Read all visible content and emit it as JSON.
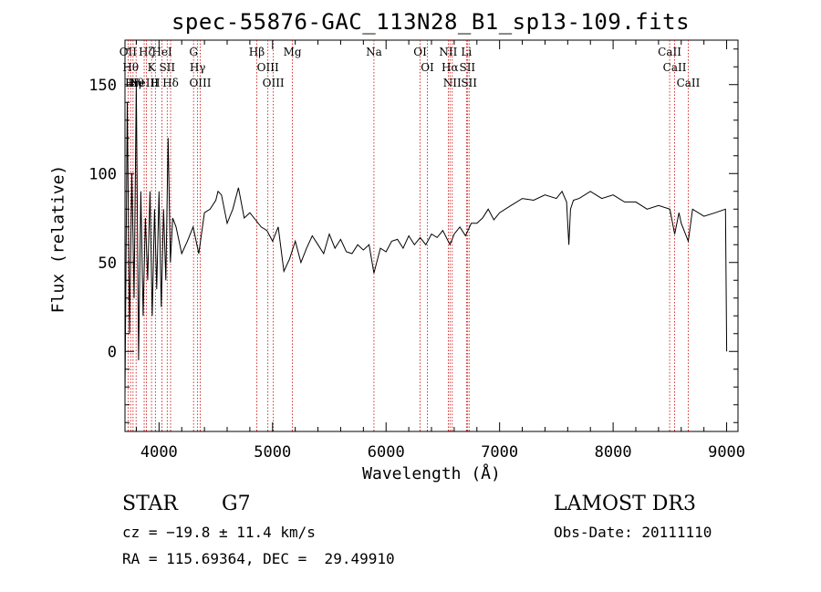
{
  "chart_data": {
    "type": "line",
    "title": "spec-55876-GAC_113N28_B1_sp13-109.fits",
    "xlabel": "Wavelength (Å)",
    "ylabel": "Flux (relative)",
    "xlim": [
      3700,
      9100
    ],
    "ylim": [
      -45,
      175
    ],
    "xticks": [
      4000,
      5000,
      6000,
      7000,
      8000,
      9000
    ],
    "yticks": [
      0,
      50,
      100,
      150
    ],
    "series": [
      {
        "name": "spectrum",
        "x": [
          3700,
          3720,
          3740,
          3760,
          3780,
          3800,
          3820,
          3840,
          3860,
          3880,
          3900,
          3920,
          3940,
          3960,
          3980,
          4000,
          4020,
          4040,
          4060,
          4080,
          4100,
          4120,
          4150,
          4200,
          4250,
          4300,
          4350,
          4400,
          4450,
          4500,
          4520,
          4550,
          4600,
          4650,
          4700,
          4750,
          4800,
          4850,
          4900,
          4950,
          5000,
          5050,
          5100,
          5150,
          5200,
          5250,
          5300,
          5350,
          5400,
          5450,
          5500,
          5550,
          5600,
          5650,
          5700,
          5750,
          5800,
          5850,
          5893,
          5950,
          6000,
          6050,
          6100,
          6150,
          6200,
          6250,
          6300,
          6350,
          6400,
          6450,
          6500,
          6563,
          6600,
          6650,
          6700,
          6750,
          6800,
          6850,
          6900,
          6950,
          7000,
          7100,
          7200,
          7300,
          7400,
          7500,
          7550,
          7590,
          7610,
          7625,
          7650,
          7700,
          7800,
          7900,
          8000,
          8100,
          8200,
          8300,
          8400,
          8500,
          8542,
          8580,
          8600,
          8662,
          8700,
          8800,
          8900,
          8990,
          9000
        ],
        "y": [
          -25,
          140,
          10,
          100,
          30,
          150,
          -5,
          90,
          20,
          75,
          40,
          90,
          20,
          80,
          35,
          90,
          25,
          80,
          40,
          120,
          50,
          75,
          70,
          55,
          62,
          70,
          55,
          78,
          80,
          85,
          90,
          88,
          72,
          80,
          92,
          75,
          78,
          74,
          70,
          68,
          62,
          70,
          45,
          52,
          62,
          50,
          58,
          65,
          60,
          55,
          66,
          58,
          63,
          56,
          55,
          60,
          57,
          60,
          44,
          58,
          56,
          62,
          63,
          58,
          65,
          60,
          64,
          60,
          66,
          64,
          68,
          60,
          66,
          70,
          65,
          72,
          72,
          75,
          80,
          74,
          78,
          82,
          86,
          85,
          88,
          86,
          90,
          84,
          60,
          80,
          85,
          86,
          90,
          86,
          88,
          84,
          84,
          80,
          82,
          80,
          66,
          78,
          72,
          62,
          80,
          76,
          78,
          80,
          0
        ]
      }
    ],
    "lines": [
      {
        "x": 3727,
        "label": "OII"
      },
      {
        "x": 3750,
        "label": "Hθ"
      },
      {
        "x": 3771,
        "label": "Hη"
      },
      {
        "x": 3798,
        "label": "Hθ"
      },
      {
        "x": 3869,
        "label": "NeIII"
      },
      {
        "x": 3889,
        "label": "Hζ"
      },
      {
        "x": 3934,
        "label": "K"
      },
      {
        "x": 3968,
        "label": "H"
      },
      {
        "x": 4026,
        "label": "HeI"
      },
      {
        "x": 4072,
        "label": "SII"
      },
      {
        "x": 4102,
        "label": "Hδ"
      },
      {
        "x": 4304,
        "label": "G"
      },
      {
        "x": 4340,
        "label": "Hγ"
      },
      {
        "x": 4363,
        "label": "OIII"
      },
      {
        "x": 4861,
        "label": "Hβ"
      },
      {
        "x": 4959,
        "label": "OIII"
      },
      {
        "x": 5007,
        "label": "OIII"
      },
      {
        "x": 5175,
        "label": "Mg"
      },
      {
        "x": 5893,
        "label": "Na"
      },
      {
        "x": 6300,
        "label": "OI"
      },
      {
        "x": 6364,
        "label": "OI"
      },
      {
        "x": 6548,
        "label": "NII"
      },
      {
        "x": 6563,
        "label": "Hα"
      },
      {
        "x": 6583,
        "label": "NII"
      },
      {
        "x": 6708,
        "label": "Li"
      },
      {
        "x": 6716,
        "label": "SII"
      },
      {
        "x": 6731,
        "label": "SII"
      },
      {
        "x": 8498,
        "label": "CaII"
      },
      {
        "x": 8542,
        "label": "CaII"
      },
      {
        "x": 8662,
        "label": "CaII"
      }
    ],
    "legend": "none",
    "grid": false
  },
  "info": {
    "object_type": "STAR",
    "subclass": "G7",
    "survey": "LAMOST DR3",
    "redshift": "cz = −19.8 ± 11.4 km/s",
    "obs_date": "Obs-Date: 20111110",
    "coords": "RA = 115.69364, DEC =  29.49910"
  }
}
